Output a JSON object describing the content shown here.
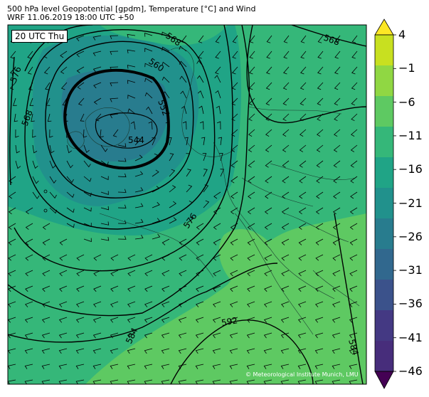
{
  "header": {
    "line1": "500 hPa level Geopotential [gpdm], Temperature [°C] and Wind",
    "line2": "WRF 11.06.2019 18:00 UTC +50"
  },
  "map": {
    "time_label": "20 UTC Thu",
    "credit": "© Meteorological Institute Munich, LMU",
    "contour_labels": [
      "544",
      "552",
      "560",
      "568",
      "576",
      "584",
      "592",
      "568",
      "568",
      "576",
      "584",
      "576"
    ],
    "land_color": "#5cc863",
    "sea_color": "#2fb47c"
  },
  "colorbar": {
    "ticks": [
      "4",
      "−1",
      "−6",
      "−11",
      "−16",
      "−21",
      "−26",
      "−31",
      "−36",
      "−41",
      "−46"
    ],
    "colors": [
      "#fde725",
      "#c8e020",
      "#90d743",
      "#5ec962",
      "#35b779",
      "#20a486",
      "#21918c",
      "#287c8e",
      "#31688e",
      "#3b528b",
      "#443983",
      "#472d7b",
      "#440154"
    ]
  }
}
